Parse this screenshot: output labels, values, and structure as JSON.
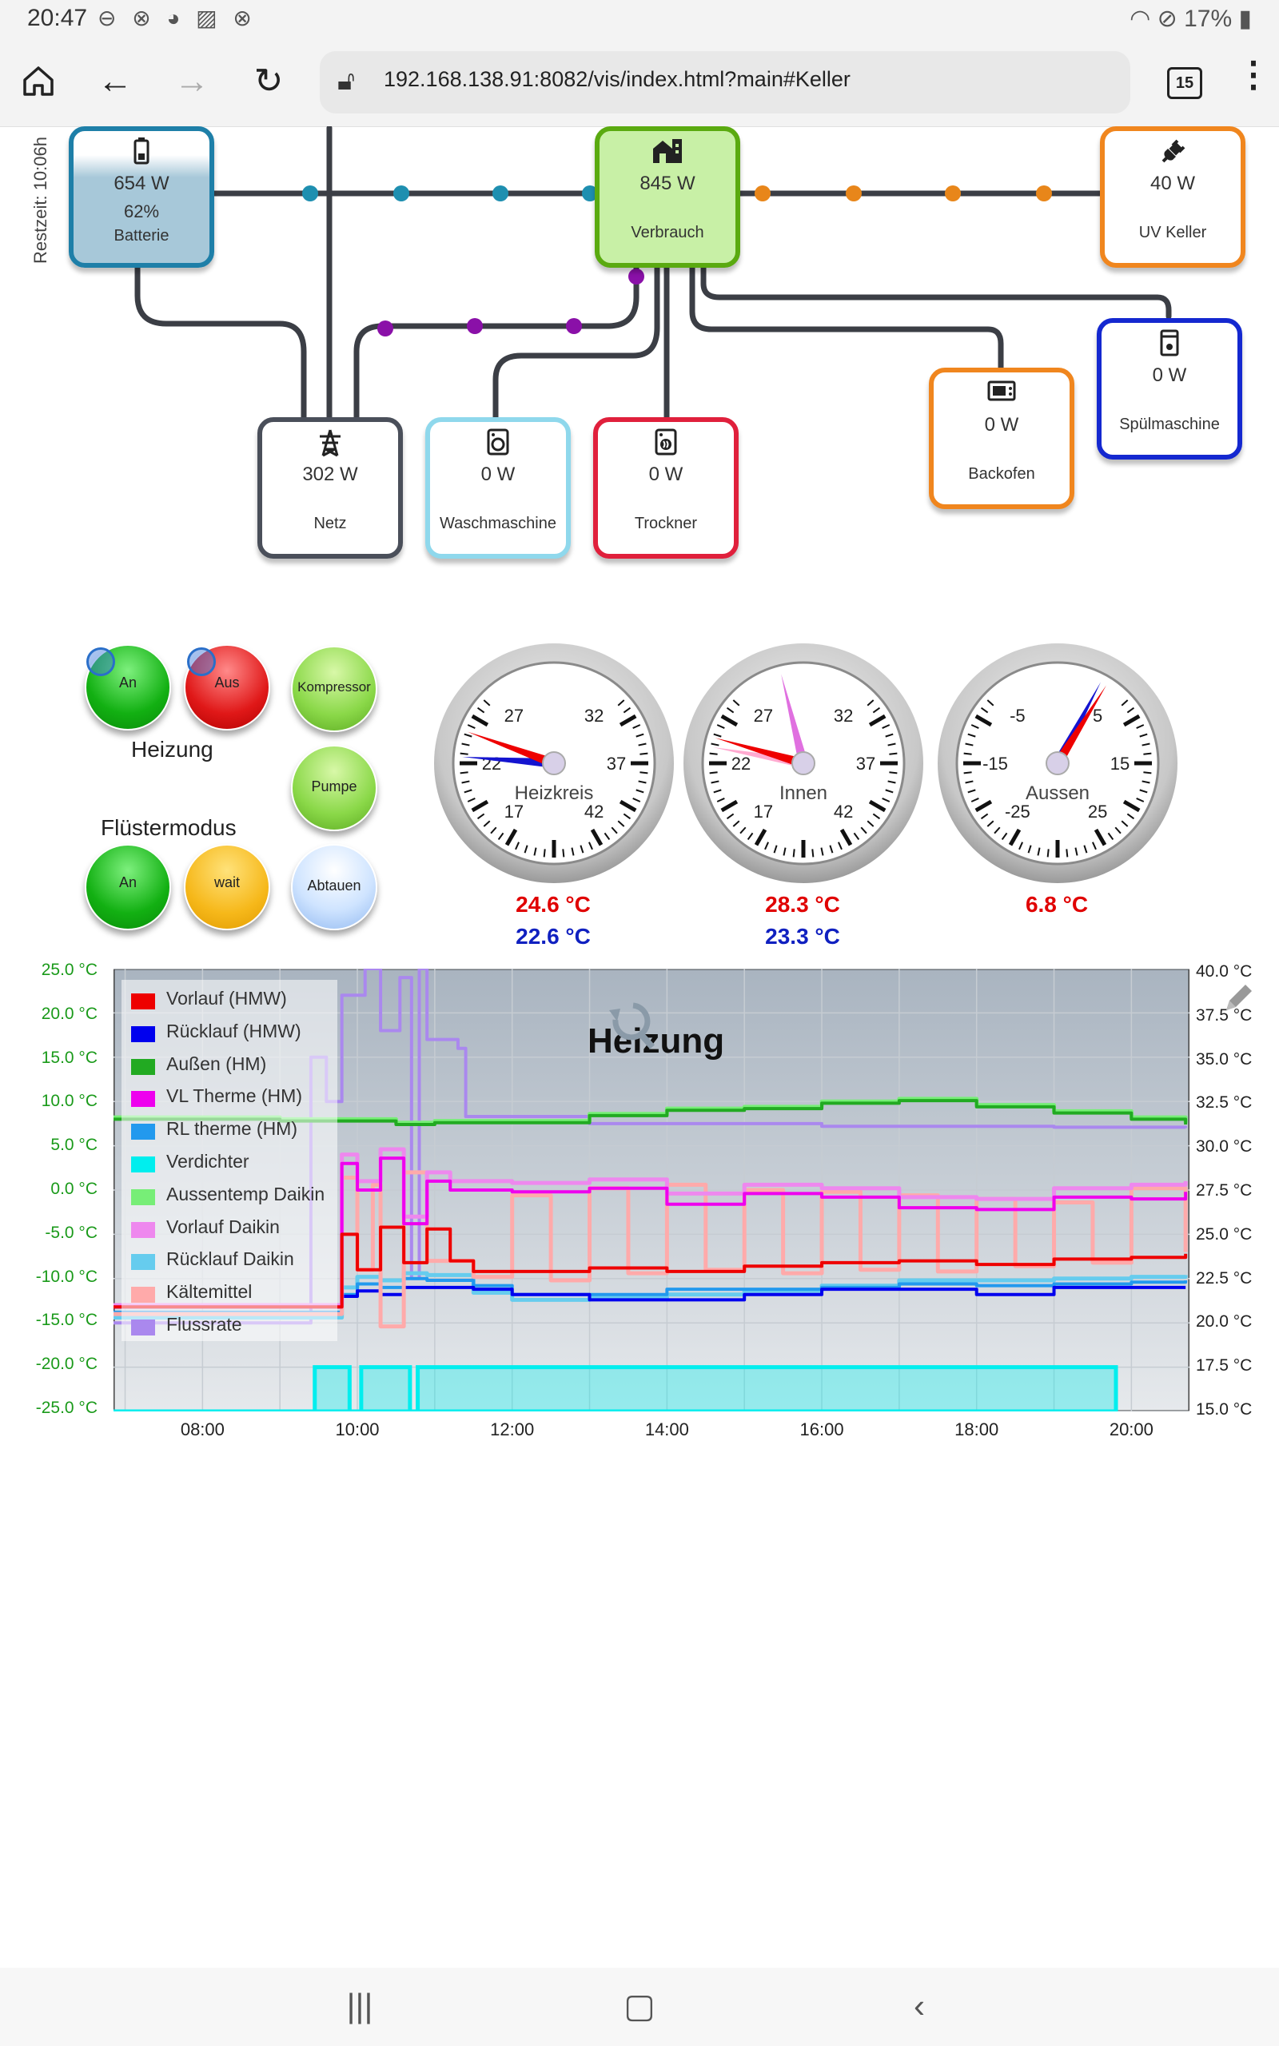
{
  "status": {
    "time": "20:47",
    "left_icons": "⊖ ⊗ ◕ ▨ ⊗",
    "battery": "17%"
  },
  "browser": {
    "url": "192.168.138.91:8082/vis/index.html?main#Keller",
    "tab_count": "15"
  },
  "restzeit": "Restzeit: 10:06h",
  "energy": {
    "batterie": {
      "value": "654 W",
      "percent": "62%",
      "label": "Batterie",
      "border": "#1e7fa8",
      "fill": "#a7c8d9"
    },
    "verbrauch": {
      "value": "845 W",
      "label": "Verbrauch",
      "border": "#5aaa10",
      "fill": "#c8f0a6"
    },
    "uv_keller": {
      "value": "40 W",
      "label": "UV Keller",
      "border": "#f0861e"
    },
    "spuelmaschine": {
      "value": "0 W",
      "label": "Spülmaschine",
      "border": "#1428d0"
    },
    "backofen": {
      "value": "0 W",
      "label": "Backofen",
      "border": "#f0861e"
    },
    "netz": {
      "value": "302 W",
      "label": "Netz",
      "border": "#4a4f5a"
    },
    "waschmaschine": {
      "value": "0 W",
      "label": "Waschmaschine",
      "border": "#8fd8ec"
    },
    "trockner": {
      "value": "0 W",
      "label": "Trockner",
      "border": "#e0203c"
    }
  },
  "heizung": {
    "label": "Heizung",
    "an": "An",
    "aus": "Aus",
    "kompressor": "Kompressor",
    "pumpe": "Pumpe",
    "abtauen": "Abtauen"
  },
  "fluester": {
    "label": "Flüstermodus",
    "an": "An",
    "wait": "wait"
  },
  "gauges": [
    {
      "name": "Heizkreis",
      "ticks": [
        "22",
        "27",
        "32",
        "37",
        "42",
        "17"
      ],
      "red": "24.6 °C",
      "blue": "22.6 °C"
    },
    {
      "name": "Innen",
      "ticks": [
        "22",
        "27",
        "32",
        "37",
        "42",
        "17"
      ],
      "red": "28.3 °C",
      "blue": "23.3 °C"
    },
    {
      "name": "Aussen",
      "ticks": [
        "-15",
        "-5",
        "5",
        "15",
        "25",
        "-25"
      ],
      "red": "6.8 °C",
      "blue": ""
    }
  ],
  "chart_data": {
    "type": "line",
    "title": "Heizung",
    "y_left": {
      "labels": [
        "25.0 °C",
        "20.0 °C",
        "15.0 °C",
        "10.0 °C",
        "5.0 °C",
        "0.0 °C",
        "-5.0 °C",
        "-10.0 °C",
        "-15.0 °C",
        "-20.0 °C",
        "-25.0 °C"
      ],
      "range": [
        -25,
        25
      ]
    },
    "y_right": {
      "labels": [
        "40.0 °C",
        "37.5 °C",
        "35.0 °C",
        "32.5 °C",
        "30.0 °C",
        "27.5 °C",
        "25.0 °C",
        "22.5 °C",
        "20.0 °C",
        "17.5 °C",
        "15.0 °C"
      ],
      "range": [
        15,
        40
      ]
    },
    "x_labels": [
      "08:00",
      "10:00",
      "12:00",
      "14:00",
      "16:00",
      "18:00",
      "20:00"
    ],
    "x_range": [
      6.85,
      20.75
    ],
    "legend": [
      {
        "name": "Vorlauf (HMW)",
        "color": "#ee0000"
      },
      {
        "name": "Rücklauf (HMW)",
        "color": "#0000ee"
      },
      {
        "name": "Außen (HM)",
        "color": "#22aa22"
      },
      {
        "name": "VL Therme (HM)",
        "color": "#ee00ee"
      },
      {
        "name": "RL therme (HM)",
        "color": "#2299ee"
      },
      {
        "name": "Verdichter",
        "color": "#00eeee"
      },
      {
        "name": "Aussentemp Daikin",
        "color": "#77ee77"
      },
      {
        "name": "Vorlauf Daikin",
        "color": "#ee88ee"
      },
      {
        "name": "Rücklauf Daikin",
        "color": "#66ccee"
      },
      {
        "name": "Kältemittel",
        "color": "#ffaaaa"
      },
      {
        "name": "Flussrate",
        "color": "#aa88ee"
      }
    ],
    "series": [
      {
        "name": "Vorlauf (HMW)",
        "axis": "right",
        "x": [
          6.85,
          9.6,
          9.8,
          10.0,
          10.3,
          10.6,
          10.9,
          11.2,
          11.5,
          12.0,
          13.0,
          14.0,
          15.0,
          16.0,
          17.0,
          18.0,
          19.0,
          20.0,
          20.7
        ],
        "y": [
          20.9,
          20.9,
          25.0,
          23.0,
          25.4,
          23.4,
          25.3,
          23.5,
          22.9,
          22.9,
          23.1,
          22.9,
          23.2,
          23.4,
          23.5,
          23.3,
          23.6,
          23.7,
          23.9
        ]
      },
      {
        "name": "Rücklauf (HMW)",
        "axis": "right",
        "x": [
          6.85,
          9.6,
          9.8,
          10.0,
          10.3,
          10.6,
          10.9,
          11.5,
          12.0,
          13.0,
          14.0,
          15.0,
          16.0,
          17.0,
          18.0,
          19.0,
          20.0,
          20.7
        ],
        "y": [
          20.9,
          20.9,
          21.5,
          21.8,
          21.6,
          22.0,
          22.0,
          21.9,
          21.6,
          21.3,
          21.3,
          21.6,
          21.9,
          21.9,
          21.6,
          22.0,
          22.0,
          22.0
        ]
      },
      {
        "name": "Außen (HM)",
        "axis": "left",
        "x": [
          6.85,
          9.0,
          10.5,
          11.0,
          12.0,
          13.0,
          14.0,
          15.0,
          16.0,
          17.0,
          18.0,
          19.0,
          20.0,
          20.7
        ],
        "y": [
          8.0,
          7.8,
          7.4,
          7.6,
          7.6,
          8.4,
          9.0,
          9.2,
          9.8,
          10.1,
          9.4,
          8.7,
          8.0,
          7.4
        ]
      },
      {
        "name": "VL Therme (HM)",
        "axis": "right",
        "x": [
          6.85,
          9.6,
          9.8,
          10.0,
          10.3,
          10.6,
          10.9,
          11.2,
          12.0,
          13.0,
          14.0,
          15.0,
          16.0,
          17.0,
          18.0,
          19.0,
          20.0,
          20.7
        ],
        "y": [
          20.9,
          20.9,
          29.0,
          27.5,
          29.3,
          25.6,
          28.0,
          27.5,
          27.4,
          27.6,
          26.7,
          27.3,
          27.1,
          26.5,
          26.4,
          27.1,
          27.0,
          27.4
        ]
      },
      {
        "name": "RL therme (HM)",
        "axis": "right",
        "x": [
          6.85,
          9.6,
          9.8,
          10.0,
          10.3,
          10.6,
          10.9,
          11.5,
          12.0,
          13.0,
          14.0,
          15.0,
          16.0,
          17.0,
          18.0,
          19.0,
          20.0,
          20.7
        ],
        "y": [
          20.6,
          20.6,
          21.6,
          22.2,
          22.0,
          22.5,
          22.4,
          22.1,
          21.6,
          21.6,
          21.9,
          21.9,
          22.0,
          22.2,
          22.1,
          22.2,
          22.3,
          22.4
        ]
      },
      {
        "name": "Verdichter",
        "axis": "left",
        "x": [
          6.85,
          9.45,
          9.45,
          9.9,
          9.9,
          10.05,
          10.05,
          10.68,
          10.68,
          10.78,
          10.78,
          19.8,
          19.8
        ],
        "y": [
          -25,
          -25,
          -20,
          -20,
          -25,
          -25,
          -20,
          -20,
          -25,
          -25,
          -20,
          -20,
          -25
        ]
      },
      {
        "name": "Aussentemp Daikin",
        "axis": "left",
        "x": [
          6.85,
          9.0,
          10.5,
          11.0,
          12.0,
          13.0,
          14.0,
          15.0,
          16.0,
          17.0,
          18.0,
          19.0,
          20.0,
          20.7
        ],
        "y": [
          8.2,
          8.0,
          7.6,
          7.8,
          7.8,
          8.6,
          9.2,
          9.4,
          10.0,
          10.3,
          9.6,
          8.9,
          8.2,
          7.6
        ]
      },
      {
        "name": "Vorlauf Daikin",
        "axis": "right",
        "x": [
          6.85,
          9.6,
          9.8,
          10.0,
          10.3,
          10.6,
          10.9,
          11.2,
          12.0,
          13.0,
          14.0,
          15.0,
          16.0,
          17.0,
          18.0,
          19.0,
          20.0,
          20.7
        ],
        "y": [
          21.0,
          21.0,
          29.5,
          28.0,
          29.8,
          26.0,
          28.5,
          28.0,
          27.9,
          28.1,
          27.3,
          27.8,
          27.6,
          27.1,
          27.0,
          27.6,
          27.8,
          28.0
        ]
      },
      {
        "name": "Rücklauf Daikin",
        "axis": "right",
        "x": [
          6.85,
          9.6,
          9.8,
          10.0,
          10.3,
          10.6,
          10.9,
          11.5,
          12.0,
          13.0,
          14.0,
          15.0,
          16.0,
          17.0,
          18.0,
          19.0,
          20.0,
          20.7
        ],
        "y": [
          20.3,
          20.3,
          22.0,
          22.6,
          22.4,
          22.8,
          22.7,
          21.7,
          21.3,
          21.4,
          21.6,
          21.8,
          22.1,
          22.4,
          22.4,
          22.5,
          22.6,
          22.7
        ]
      },
      {
        "name": "Kältemittel",
        "axis": "right",
        "x": [
          6.85,
          9.6,
          9.8,
          10.0,
          10.2,
          10.3,
          10.6,
          10.9,
          11.5,
          12.0,
          12.5,
          13.0,
          13.5,
          14.0,
          14.5,
          15.0,
          15.5,
          16.0,
          16.5,
          17.0,
          17.5,
          18.0,
          18.5,
          19.0,
          19.5,
          20.0,
          20.7
        ],
        "y": [
          20.5,
          20.5,
          28.2,
          23.0,
          27.8,
          19.8,
          28.5,
          23.5,
          22.6,
          27.2,
          22.4,
          27.6,
          22.8,
          27.8,
          23.0,
          27.5,
          22.8,
          27.4,
          23.0,
          27.2,
          22.9,
          27.0,
          23.2,
          26.8,
          23.4,
          27.6,
          24.0
        ]
      },
      {
        "name": "Flussrate",
        "axis": "left",
        "x": [
          6.85,
          9.2,
          9.4,
          9.6,
          9.8,
          10.1,
          10.3,
          10.55,
          10.7,
          10.8,
          10.9,
          11.3,
          11.4,
          13.0,
          16.0,
          19.0,
          20.7
        ],
        "y": [
          -15.0,
          -15.0,
          15.0,
          10.0,
          22.0,
          25.0,
          18.0,
          24.0,
          -10.0,
          25.0,
          17.0,
          16.0,
          8.3,
          7.5,
          7.2,
          7.1,
          7.0
        ]
      }
    ]
  }
}
